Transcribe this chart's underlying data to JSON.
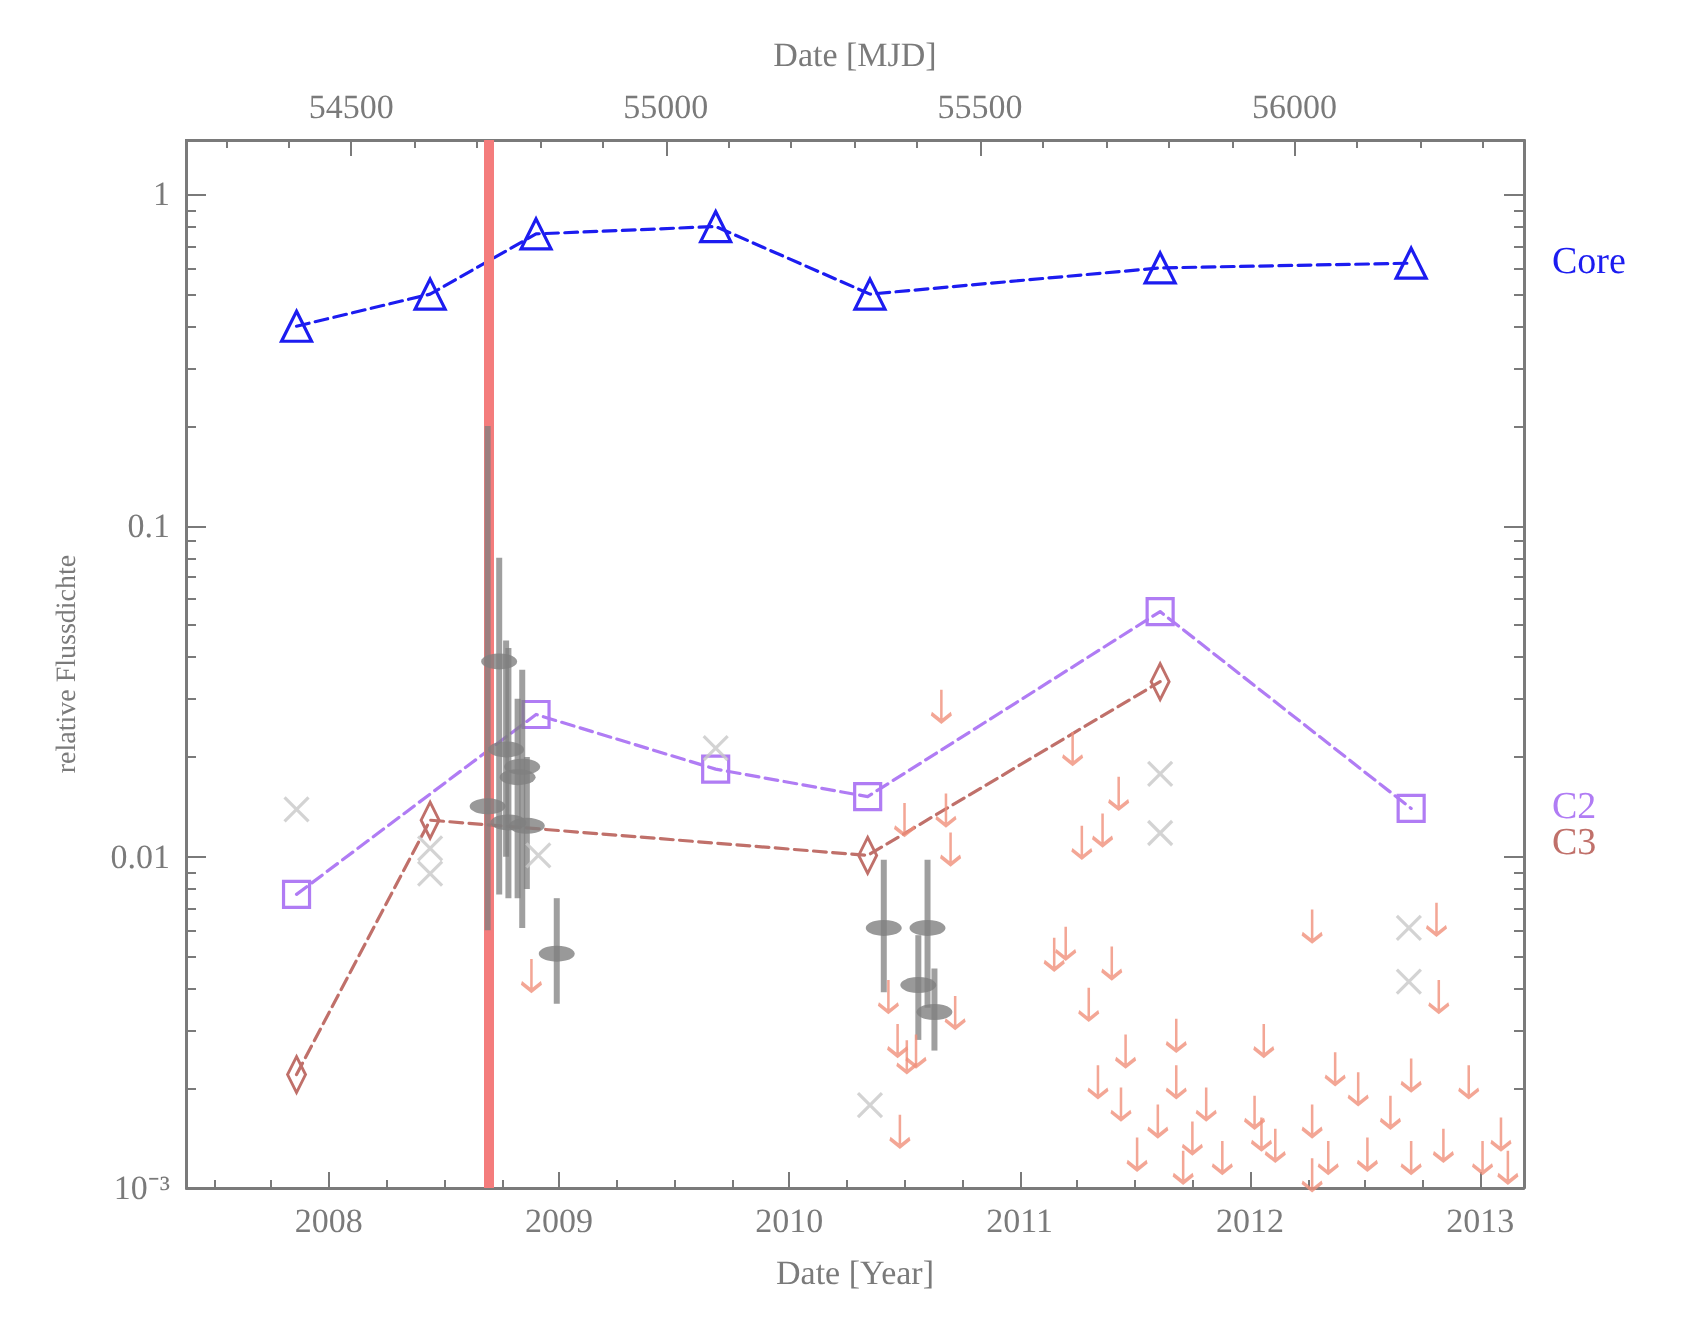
{
  "chart_data": {
    "type": "line",
    "xlabel": "Date [Year]",
    "x2label": "Date [MJD]",
    "ylabel": "relative Flussdichte",
    "xlim": [
      2007.38,
      2013.19
    ],
    "xticks": [
      2008,
      2009,
      2010,
      2011,
      2012,
      2013
    ],
    "x2lim": [
      54237,
      56365
    ],
    "x2ticks": [
      54500,
      55000,
      55500,
      56000
    ],
    "ylim": [
      0.001,
      1.46
    ],
    "yticks": [
      {
        "value": 0.001,
        "label": "10⁻³"
      },
      0.01,
      0.1,
      1
    ],
    "log": "y",
    "grid": false,
    "legend": false,
    "ref_lines": [
      {
        "axis": "x",
        "value": 2008.69,
        "color": "#f47c7c"
      }
    ],
    "series": [
      {
        "name": "Core",
        "color": "#1c1cf0",
        "marker": "triangle",
        "line_style": "dashed",
        "x": [
          2007.86,
          2008.44,
          2008.9,
          2009.68,
          2010.35,
          2011.61,
          2012.7
        ],
        "values": [
          0.4,
          0.5,
          0.76,
          0.8,
          0.5,
          0.6,
          0.62
        ]
      },
      {
        "name": "C2",
        "color": "#b07cf4",
        "marker": "square",
        "line_style": "dashed",
        "x": [
          2007.86,
          2008.9,
          2009.68,
          2010.34,
          2011.61,
          2012.7
        ],
        "values": [
          0.0077,
          0.0269,
          0.0184,
          0.0152,
          0.055,
          0.014
        ]
      },
      {
        "name": "C3",
        "color": "#c0706a",
        "marker": "diamond",
        "line_style": "dashed",
        "x": [
          2007.86,
          2008.44,
          2010.34,
          2011.61
        ],
        "values": [
          0.0022,
          0.0129,
          0.0101,
          0.0338
        ]
      },
      {
        "type": "scatter",
        "color": "#c8c8c8",
        "marker": "cross",
        "x": [
          2007.86,
          2008.44,
          2008.44,
          2008.91,
          2009.68,
          2010.35,
          2011.61,
          2011.61,
          2012.69,
          2012.69
        ],
        "values": [
          0.0139,
          0.0106,
          0.0089,
          0.0101,
          0.0213,
          0.00178,
          0.0178,
          0.0118,
          0.0061,
          0.0042
        ]
      },
      {
        "type": "scatter",
        "color": "#7f7f7f",
        "marker": "circle",
        "x": [
          2008.74,
          2008.77,
          2008.84,
          2008.82,
          2008.69,
          2008.78,
          2008.86,
          2008.99,
          2010.41,
          2010.6,
          2010.56,
          2010.63
        ],
        "values": [
          0.0389,
          0.0211,
          0.0187,
          0.0174,
          0.0142,
          0.0127,
          0.0124,
          0.0051,
          0.0061,
          0.0061,
          0.0041,
          0.0034
        ],
        "errors": [
          [
            0.0077,
            0.08
          ],
          [
            0.01,
            0.045
          ],
          [
            0.0061,
            0.0367
          ],
          [
            0.0075,
            0.03
          ],
          [
            0.006,
            0.2
          ],
          [
            0.0075,
            0.0427
          ],
          [
            0.008,
            0.02
          ],
          [
            0.0036,
            0.0075
          ],
          [
            0.0039,
            0.0098
          ],
          [
            0.0035,
            0.0098
          ],
          [
            0.0028,
            0.0058
          ],
          [
            0.0026,
            0.0046
          ]
        ]
      },
      {
        "type": "scatter",
        "color": "#f0907a",
        "x": [
          2010.66,
          2011.23,
          2011.43,
          2011.36,
          2011.27,
          2010.5,
          2010.68,
          2010.7,
          2012.27,
          2012.81,
          2011.2,
          2011.4,
          2011.15,
          2011.3,
          2012.82,
          2011.46,
          2011.68,
          2012.06,
          2011.34,
          2011.68,
          2012.37,
          2012.7,
          2012.95,
          2011.81,
          2011.44,
          2012.47,
          2012.61,
          2011.6,
          2012.02,
          2012.27,
          2013.09,
          2010.43,
          2010.47,
          2010.55,
          2010.48,
          2010.72,
          2011.51,
          2011.75,
          2011.88,
          2012.11,
          2012.34,
          2012.51,
          2012.7,
          2012.84,
          2013.01,
          2013.12,
          2012.05,
          2011.71,
          2012.27,
          2008.88,
          2010.51
        ],
        "values": [
          0.0286,
          0.0213,
          0.0156,
          0.0121,
          0.0111,
          0.013,
          0.0139,
          0.0106,
          0.0062,
          0.0065,
          0.0055,
          0.0048,
          0.0051,
          0.0036,
          0.0038,
          0.0026,
          0.0029,
          0.0028,
          0.0021,
          0.0021,
          0.0023,
          0.0022,
          0.0021,
          0.0018,
          0.0018,
          0.002,
          0.0017,
          0.0016,
          0.0017,
          0.0016,
          0.00146,
          0.0038,
          0.0028,
          0.0026,
          0.00149,
          0.0034,
          0.00127,
          0.00142,
          0.00124,
          0.00135,
          0.00124,
          0.00127,
          0.00124,
          0.00135,
          0.00124,
          0.00116,
          0.00146,
          0.00116,
          0.0011,
          0.0044,
          0.0025
        ]
      }
    ]
  }
}
